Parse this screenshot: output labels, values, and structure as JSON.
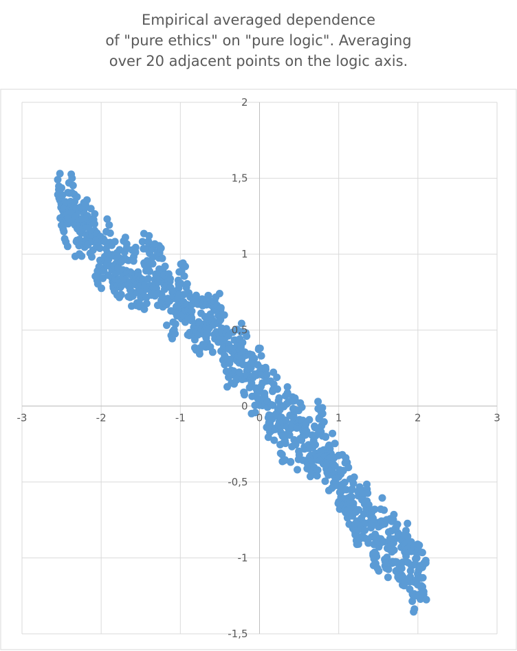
{
  "chart_data": {
    "type": "scatter",
    "title_lines": [
      "Empirical averaged dependence",
      "of \"pure ethics\" on \"pure logic\". Averaging",
      "over 20 adjacent points on the logic axis."
    ],
    "xlim": [
      -3,
      3
    ],
    "ylim": [
      -1.5,
      2
    ],
    "x_ticks": [
      -3,
      -2,
      -1,
      0,
      1,
      2,
      3
    ],
    "x_tick_labels": [
      "-3",
      "-2",
      "-1",
      "0",
      "1",
      "2",
      "3"
    ],
    "y_ticks": [
      -1.5,
      -1,
      -0.5,
      0,
      0.5,
      1,
      1.5,
      2
    ],
    "y_tick_labels": [
      "-1,5",
      "-1",
      "-0,5",
      "0",
      "0,5",
      "1",
      "1,5",
      "2"
    ],
    "grid": true,
    "marker_color": "#5b9bd5",
    "trend_anchors": [
      [
        -2.55,
        1.37
      ],
      [
        -2.4,
        1.28
      ],
      [
        -2.2,
        1.2
      ],
      [
        -2.05,
        1.05
      ],
      [
        -1.9,
        1.0
      ],
      [
        -1.75,
        0.82
      ],
      [
        -1.55,
        0.85
      ],
      [
        -1.4,
        0.95
      ],
      [
        -1.25,
        0.82
      ],
      [
        -1.1,
        0.65
      ],
      [
        -0.95,
        0.7
      ],
      [
        -0.8,
        0.6
      ],
      [
        -0.6,
        0.5
      ],
      [
        -0.4,
        0.4
      ],
      [
        -0.2,
        0.3
      ],
      [
        0.0,
        0.15
      ],
      [
        0.2,
        -0.05
      ],
      [
        0.4,
        -0.15
      ],
      [
        0.6,
        -0.25
      ],
      [
        0.8,
        -0.3
      ],
      [
        1.0,
        -0.55
      ],
      [
        1.2,
        -0.75
      ],
      [
        1.4,
        -0.8
      ],
      [
        1.6,
        -0.88
      ],
      [
        1.8,
        -0.95
      ],
      [
        1.95,
        -1.08
      ],
      [
        2.1,
        -1.2
      ]
    ]
  }
}
